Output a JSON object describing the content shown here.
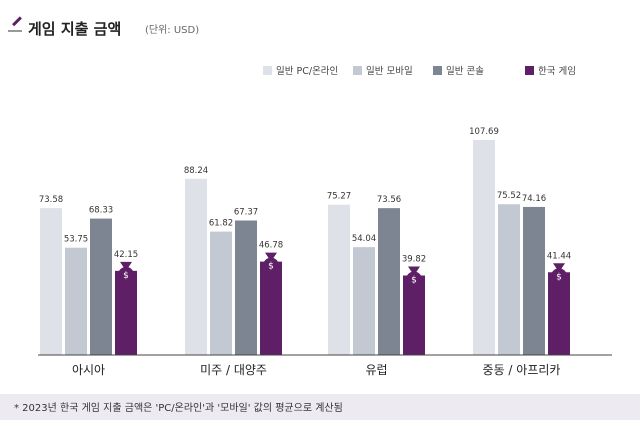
{
  "title": "게임 지출 금액",
  "unit_label": "(단위: USD)",
  "footnote": "* 2023년 한국 게임 지출 금액은 'PC/온라인'과 '모바일' 값의 평균으로 계산됨",
  "icon": "pencil-icon",
  "coin_icon": "money-bag-icon",
  "coin_symbol": "$",
  "colors": {
    "pc_online": "#dfe1e8",
    "mobile": "#c3c9d3",
    "console": "#7d8592",
    "korea": "#5e1f66"
  },
  "chart_data": {
    "type": "bar",
    "title": "게임 지출 금액",
    "categories": [
      "아시아",
      "미주 / 대양주",
      "유럽",
      "중동 / 아프리카"
    ],
    "series": [
      {
        "name": "일반 PC/온라인",
        "values": [
          73.58,
          88.24,
          75.27,
          107.69
        ]
      },
      {
        "name": "일반 모바일",
        "values": [
          53.75,
          61.82,
          54.04,
          75.52
        ]
      },
      {
        "name": "일반 콘솔",
        "values": [
          68.33,
          67.37,
          73.56,
          74.16
        ]
      },
      {
        "name": "한국 게임",
        "values": [
          42.15,
          46.78,
          39.82,
          41.44
        ]
      }
    ],
    "legend": "top-right",
    "grid": false,
    "ylim": [
      0,
      110
    ]
  }
}
